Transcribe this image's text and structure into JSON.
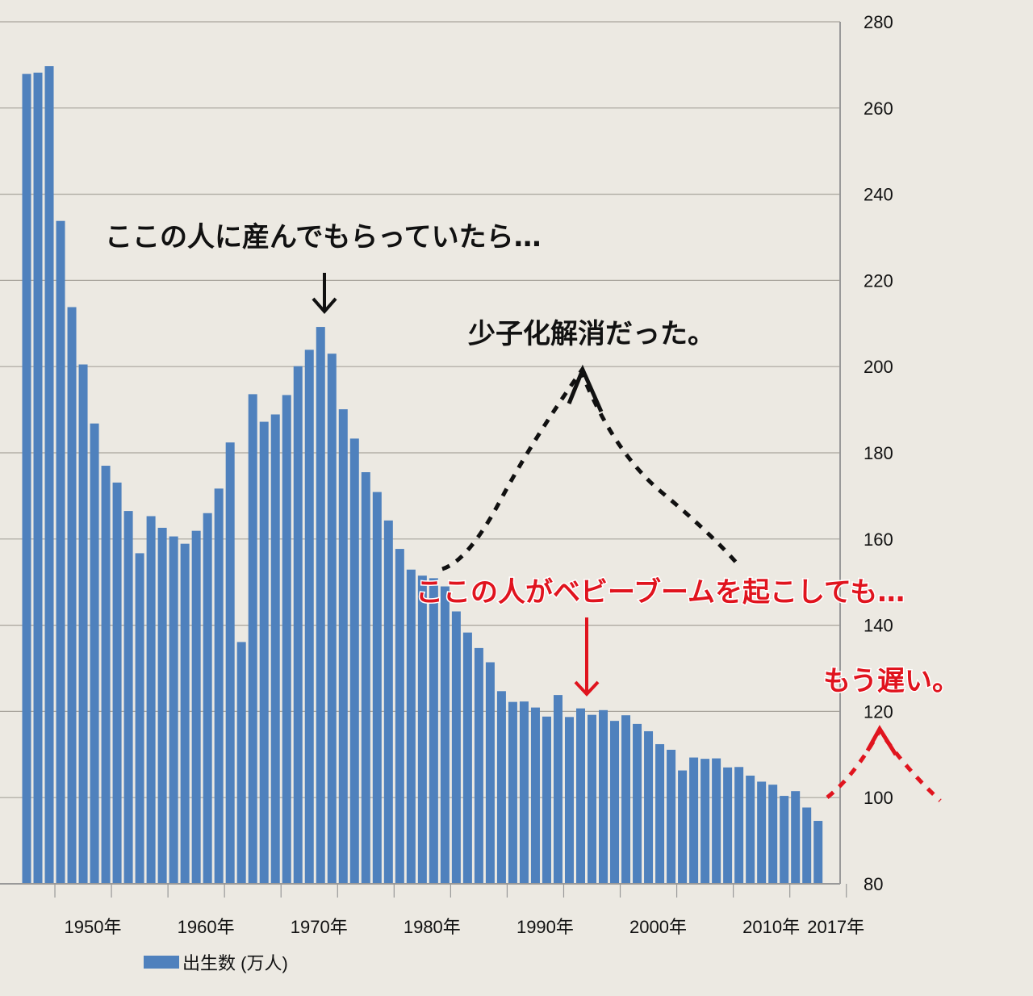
{
  "chart_data": {
    "type": "bar",
    "title": "",
    "xlabel": "",
    "ylabel": "",
    "y_axis_side": "right",
    "ylim": [
      80,
      280
    ],
    "yticks": [
      80,
      100,
      120,
      140,
      160,
      180,
      200,
      220,
      240,
      260,
      280
    ],
    "grid": true,
    "x_tick_labels": [
      "1950年",
      "1960年",
      "1970年",
      "1980年",
      "1990年",
      "2000年",
      "2010年",
      "2017年"
    ],
    "x_tick_years": [
      1950,
      1960,
      1970,
      1980,
      1990,
      2000,
      2010,
      2017
    ],
    "legend": {
      "placement": "bottom-left",
      "entries": [
        "出生数 (万人)"
      ]
    },
    "bar_color": "#4f81bd",
    "start_year": 1947,
    "categories": [
      1947,
      1948,
      1949,
      1950,
      1951,
      1952,
      1953,
      1954,
      1955,
      1956,
      1957,
      1958,
      1959,
      1960,
      1961,
      1962,
      1963,
      1964,
      1965,
      1966,
      1967,
      1968,
      1969,
      1970,
      1971,
      1972,
      1973,
      1974,
      1975,
      1976,
      1977,
      1978,
      1979,
      1980,
      1981,
      1982,
      1983,
      1984,
      1985,
      1986,
      1987,
      1988,
      1989,
      1990,
      1991,
      1992,
      1993,
      1994,
      1995,
      1996,
      1997,
      1998,
      1999,
      2000,
      2001,
      2002,
      2003,
      2004,
      2005,
      2006,
      2007,
      2008,
      2009,
      2010,
      2011,
      2012,
      2013,
      2014,
      2015,
      2016,
      2017
    ],
    "series": [
      {
        "name": "出生数 (万人)",
        "values": [
          267.9,
          268.2,
          269.7,
          233.8,
          213.8,
          200.5,
          186.8,
          177.0,
          173.1,
          166.5,
          156.7,
          165.3,
          162.6,
          160.6,
          158.9,
          161.9,
          166.0,
          171.7,
          182.4,
          136.1,
          193.6,
          187.2,
          188.9,
          193.4,
          200.1,
          203.9,
          209.2,
          203.0,
          190.1,
          183.3,
          175.5,
          170.9,
          164.3,
          157.7,
          152.9,
          151.5,
          150.9,
          149.0,
          143.2,
          138.3,
          134.7,
          131.4,
          124.7,
          122.2,
          122.3,
          120.9,
          118.8,
          123.8,
          118.7,
          120.7,
          119.2,
          120.3,
          117.8,
          119.1,
          117.1,
          115.4,
          112.4,
          111.1,
          106.3,
          109.3,
          109.0,
          109.1,
          107.0,
          107.1,
          105.1,
          103.7,
          103.0,
          100.4,
          101.5,
          97.7,
          94.6
        ]
      }
    ],
    "annotations": {
      "a1": "ここの人に産んでもらっていたら…",
      "a2": "少子化解消だった。",
      "a3": "ここの人がベビーブームを起こしても…",
      "a4": "もう遅い。",
      "black": "#111111",
      "red": "#e0141e"
    }
  }
}
